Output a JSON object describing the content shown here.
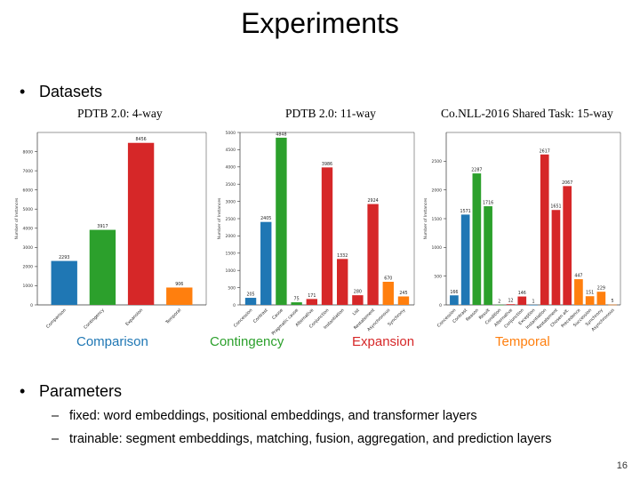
{
  "slide": {
    "title": "Experiments",
    "bullet_datasets": "Datasets",
    "bullet_parameters": "Parameters",
    "params": [
      "fixed: word embeddings, positional embeddings, and transformer layers",
      "trainable: segment embeddings, matching, fusion, aggregation, and prediction layers"
    ],
    "page_number": "16",
    "bullet_glyph": "•",
    "dash_glyph": "–"
  },
  "legend": [
    {
      "label": "Comparison",
      "color": "#1f77b4"
    },
    {
      "label": "Contingency",
      "color": "#2ca02c"
    },
    {
      "label": "Expansion",
      "color": "#d62728"
    },
    {
      "label": "Temporal",
      "color": "#ff7f0e"
    }
  ],
  "chart_data": [
    {
      "type": "bar",
      "title": "PDTB 2.0: 4-way",
      "ylabel": "Number of Instances",
      "ylim": [
        0,
        9000
      ],
      "yticks": [
        0,
        1000,
        2000,
        3000,
        4000,
        5000,
        6000,
        7000,
        8000
      ],
      "categories": [
        "Comparison",
        "Contingency",
        "Expansion",
        "Temporal"
      ],
      "values": [
        2293,
        3917,
        8456,
        906
      ],
      "value_labels": [
        "2293",
        "3917",
        "8456",
        "906"
      ],
      "colors": [
        "#1f77b4",
        "#2ca02c",
        "#d62728",
        "#ff7f0e"
      ]
    },
    {
      "type": "bar",
      "title": "PDTB 2.0: 11-way",
      "ylabel": "Number of Instances",
      "ylim": [
        0,
        5000
      ],
      "yticks": [
        0,
        500,
        1000,
        1500,
        2000,
        2500,
        3000,
        3500,
        4000,
        4500,
        5000
      ],
      "categories": [
        "Concession",
        "Contrast",
        "Cause",
        "Pragmatic cause",
        "Alternative",
        "Conjunction",
        "Instantiation",
        "List",
        "Restatement",
        "Asynchronous",
        "Synchrony"
      ],
      "values": [
        205,
        2405,
        4848,
        75,
        171,
        3986,
        1332,
        280,
        2924,
        670,
        245
      ],
      "value_labels": [
        "205",
        "2405",
        "4848",
        "75",
        "171",
        "3986",
        "1332",
        "280",
        "2924",
        "670",
        "245"
      ],
      "colors": [
        "#1f77b4",
        "#1f77b4",
        "#2ca02c",
        "#2ca02c",
        "#d62728",
        "#d62728",
        "#d62728",
        "#d62728",
        "#d62728",
        "#ff7f0e",
        "#ff7f0e"
      ]
    },
    {
      "type": "bar",
      "title": "Co.NLL-2016 Shared Task: 15-way",
      "ylabel": "Number of Instances",
      "ylim": [
        0,
        3000
      ],
      "yticks": [
        0,
        500,
        1000,
        1500,
        2000,
        2500
      ],
      "categories": [
        "Concession",
        "Contrast",
        "Reason",
        "Result",
        "Condition",
        "Alternative",
        "Conjunction",
        "Exception",
        "Instantiation",
        "Restatement",
        "Chosen alt.",
        "Precedence",
        "Succession",
        "Synchrony",
        "Asynchronous"
      ],
      "values": [
        166,
        1571,
        2287,
        1716,
        2,
        12,
        146,
        1,
        2617,
        1651,
        2067,
        447,
        151,
        229,
        5
      ],
      "value_labels": [
        "166",
        "1571",
        "2287",
        "1716",
        "2",
        "12",
        "146",
        "1",
        "2617",
        "1651",
        "2067",
        "447",
        "151",
        "229",
        "5"
      ],
      "colors": [
        "#1f77b4",
        "#1f77b4",
        "#2ca02c",
        "#2ca02c",
        "#2ca02c",
        "#d62728",
        "#d62728",
        "#1f77b4",
        "#d62728",
        "#d62728",
        "#d62728",
        "#ff7f0e",
        "#ff7f0e",
        "#ff7f0e",
        "#ff7f0e"
      ]
    }
  ]
}
